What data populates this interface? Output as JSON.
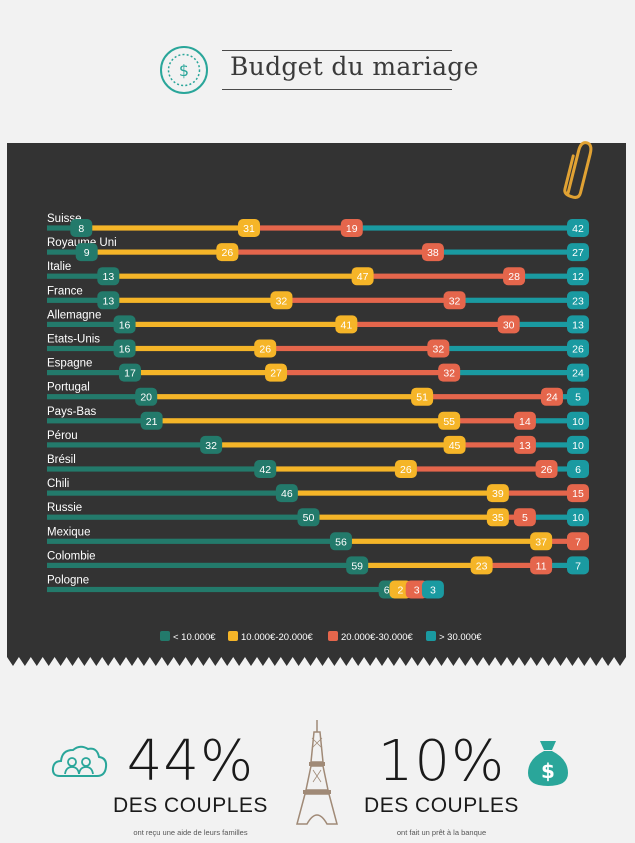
{
  "header": {
    "title": "Budget du mariage",
    "icon": "dollar-coin-icon"
  },
  "colors": {
    "background": "#f2f2f2",
    "chart_background": "#333333",
    "lt10k": "#237a6b",
    "r10_20k": "#f5b528",
    "r20_30k": "#e5664c",
    "gt30k": "#1a9aa1",
    "accent_teal": "#2aa69a"
  },
  "chart_data": {
    "type": "bar",
    "subtype": "stacked-horizontal-100",
    "categories": [
      "Suisse",
      "Royaume Uni",
      "Italie",
      "France",
      "Allemagne",
      "Etats-Unis",
      "Espagne",
      "Portugal",
      "Pays-Bas",
      "Pérou",
      "Brésil",
      "Chili",
      "Russie",
      "Mexique",
      "Colombie",
      "Pologne"
    ],
    "series": [
      {
        "name": "< 10.000€",
        "color": "#237a6b",
        "values": [
          8,
          9,
          13,
          13,
          16,
          16,
          17,
          20,
          21,
          32,
          42,
          46,
          50,
          56,
          59,
          65
        ]
      },
      {
        "name": "10.000€-20.000€",
        "color": "#f5b528",
        "values": [
          31,
          26,
          47,
          32,
          41,
          26,
          27,
          51,
          55,
          45,
          26,
          39,
          35,
          37,
          23,
          2
        ]
      },
      {
        "name": "20.000€-30.000€",
        "color": "#e5664c",
        "values": [
          19,
          38,
          28,
          32,
          30,
          32,
          32,
          24,
          14,
          13,
          26,
          15,
          5,
          7,
          11,
          3
        ]
      },
      {
        "name": "> 30.000€",
        "color": "#1a9aa1",
        "values": [
          42,
          27,
          12,
          23,
          13,
          26,
          24,
          5,
          10,
          10,
          6,
          0,
          10,
          0,
          7,
          3
        ]
      }
    ],
    "legend_position": "bottom",
    "unit": "%",
    "grid": false
  },
  "stats": [
    {
      "value": "44%",
      "caps": "DES COUPLES",
      "caption": "ont reçu une aide de leurs familles",
      "icon": "family-cloud-icon"
    },
    {
      "value": "10%",
      "caps": "DES COUPLES",
      "caption": "ont fait un prêt à la banque",
      "icon": "money-bag-icon"
    }
  ],
  "decor": {
    "center_icon": "eiffel-tower-icon",
    "clip_icon": "paperclip-icon"
  }
}
